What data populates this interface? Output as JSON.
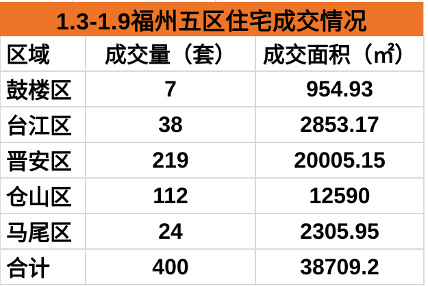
{
  "title": "1.3-1.9福州五区住宅成交情况",
  "colors": {
    "title_bg": "#ED7527",
    "grid_line": "#D9D9D9",
    "cell_bg": "#FFFFFF",
    "text": "#000000"
  },
  "table": {
    "columns": [
      "区域",
      "成交量（套）",
      "成交面积（㎡）"
    ],
    "rows": [
      {
        "region": "鼓楼区",
        "units": "7",
        "area": "954.93"
      },
      {
        "region": "台江区",
        "units": "38",
        "area": "2853.17"
      },
      {
        "region": "晋安区",
        "units": "219",
        "area": "20005.15"
      },
      {
        "region": "仓山区",
        "units": "112",
        "area": "12590"
      },
      {
        "region": "马尾区",
        "units": "24",
        "area": "2305.95"
      },
      {
        "region": "合计",
        "units": "400",
        "area": "38709.2"
      }
    ]
  }
}
